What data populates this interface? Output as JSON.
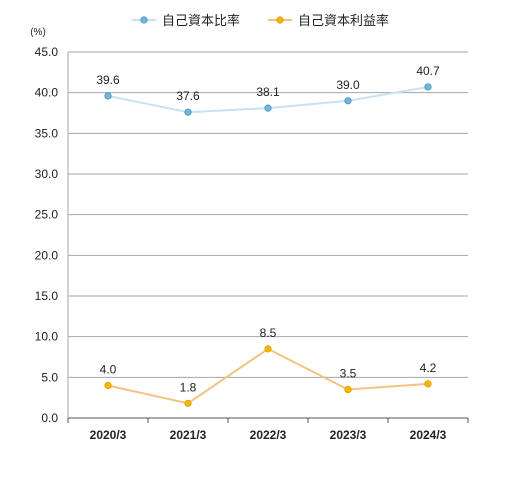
{
  "chart_data": {
    "type": "line",
    "unit": "(%)",
    "categories": [
      "2020/3",
      "2021/3",
      "2022/3",
      "2023/3",
      "2024/3"
    ],
    "ylim": [
      0,
      45
    ],
    "yticks": [
      "0.0",
      "5.0",
      "10.0",
      "15.0",
      "20.0",
      "25.0",
      "30.0",
      "35.0",
      "40.0",
      "45.0"
    ],
    "grid": true,
    "legend_position": "top",
    "series": [
      {
        "name": "自己資本比率",
        "values": [
          39.6,
          37.6,
          38.1,
          39.0,
          40.7
        ],
        "labels": [
          "39.6",
          "37.6",
          "38.1",
          "39.0",
          "40.7"
        ],
        "line_color": "#c5e3f3",
        "marker_color": "#74b6df",
        "marker_stroke": "#4a90c2"
      },
      {
        "name": "自己資本利益率",
        "values": [
          4.0,
          1.8,
          8.5,
          3.5,
          4.2
        ],
        "labels": [
          "4.0",
          "1.8",
          "8.5",
          "3.5",
          "4.2"
        ],
        "line_color": "#f7c17f",
        "marker_color": "#f5b800",
        "marker_stroke": "#e09a00"
      }
    ]
  }
}
